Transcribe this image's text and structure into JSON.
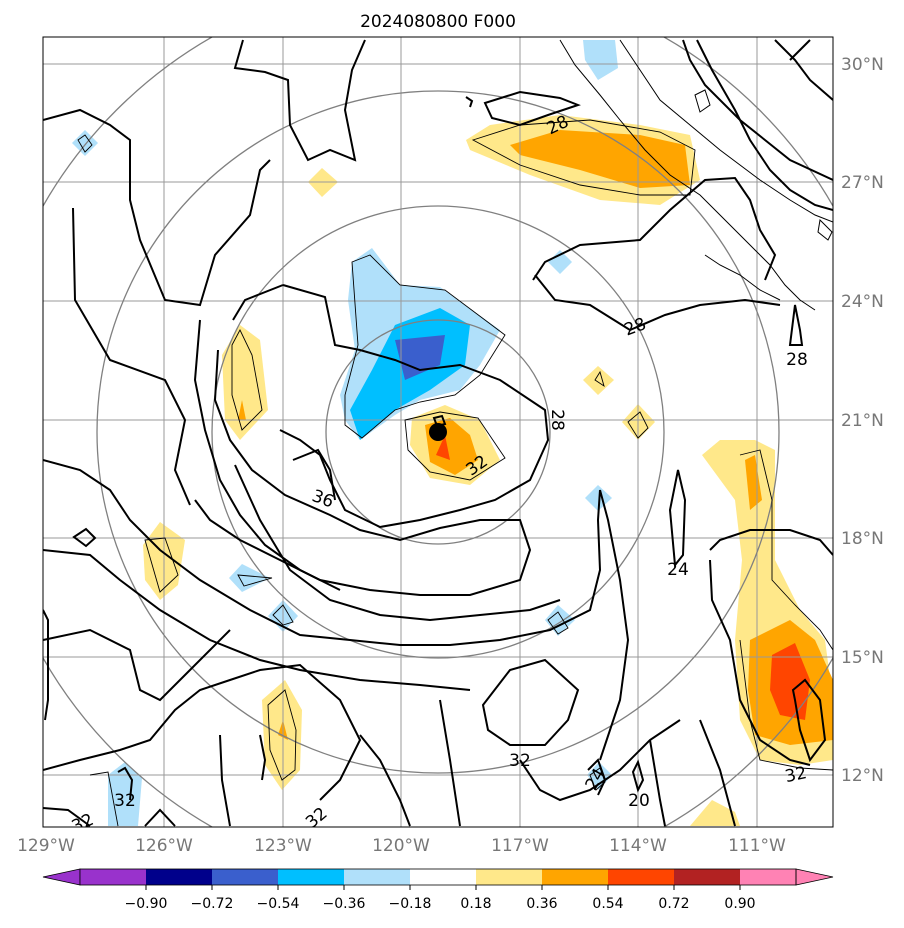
{
  "title": "2024080800 F000",
  "lon_ticks": [
    "129°W",
    "126°W",
    "123°W",
    "120°W",
    "117°W",
    "114°W",
    "111°W"
  ],
  "lat_ticks": [
    "30°N",
    "27°N",
    "24°N",
    "21°N",
    "18°N",
    "15°N",
    "12°N"
  ],
  "contour_labels": [
    "28",
    "28",
    "28",
    "28",
    "32",
    "36",
    "24",
    "32",
    "32",
    "24",
    "20",
    "32",
    "32",
    "32"
  ],
  "colorbar": {
    "tick_labels": [
      "−0.90",
      "−0.72",
      "−0.54",
      "−0.36",
      "−0.18",
      "0.18",
      "0.36",
      "0.54",
      "0.72",
      "0.90"
    ],
    "colors": [
      "#9932cc",
      "#00008b",
      "#3a5fcd",
      "#00bfff",
      "#b0e0fa",
      "#ffffff",
      "#ffe88a",
      "#ffa500",
      "#ff4500",
      "#b22222",
      "#ff82b4"
    ]
  },
  "center_marker": "storm-center-dot"
}
